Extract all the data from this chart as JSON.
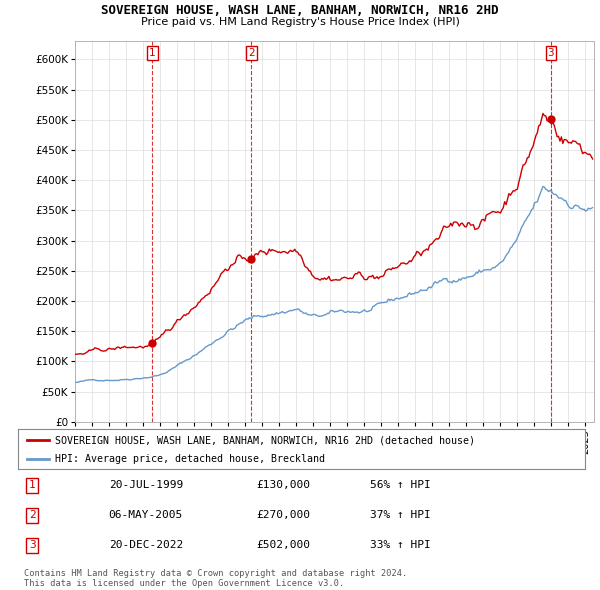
{
  "title": "SOVEREIGN HOUSE, WASH LANE, BANHAM, NORWICH, NR16 2HD",
  "subtitle": "Price paid vs. HM Land Registry's House Price Index (HPI)",
  "xlim_start": 1995.0,
  "xlim_end": 2025.5,
  "ylim": [
    0,
    630000
  ],
  "yticks": [
    0,
    50000,
    100000,
    150000,
    200000,
    250000,
    300000,
    350000,
    400000,
    450000,
    500000,
    550000,
    600000
  ],
  "ytick_labels": [
    "£0",
    "£50K",
    "£100K",
    "£150K",
    "£200K",
    "£250K",
    "£300K",
    "£350K",
    "£400K",
    "£450K",
    "£500K",
    "£550K",
    "£600K"
  ],
  "red_color": "#cc0000",
  "blue_color": "#6699cc",
  "purchases": [
    {
      "num": 1,
      "year": 1999.55,
      "price": 130000,
      "date": "20-JUL-1999",
      "pct": "56%",
      "dir": "↑"
    },
    {
      "num": 2,
      "year": 2005.35,
      "price": 270000,
      "date": "06-MAY-2005",
      "pct": "37%",
      "dir": "↑"
    },
    {
      "num": 3,
      "year": 2022.97,
      "price": 502000,
      "date": "20-DEC-2022",
      "pct": "33%",
      "dir": "↑"
    }
  ],
  "legend_red_label": "SOVEREIGN HOUSE, WASH LANE, BANHAM, NORWICH, NR16 2HD (detached house)",
  "legend_blue_label": "HPI: Average price, detached house, Breckland",
  "footnote1": "Contains HM Land Registry data © Crown copyright and database right 2024.",
  "footnote2": "This data is licensed under the Open Government Licence v3.0.",
  "table_rows": [
    {
      "num": 1,
      "date": "20-JUL-1999",
      "price": "£130,000",
      "pct": "56% ↑ HPI"
    },
    {
      "num": 2,
      "date": "06-MAY-2005",
      "price": "£270,000",
      "pct": "37% ↑ HPI"
    },
    {
      "num": 3,
      "date": "20-DEC-2022",
      "price": "£502,000",
      "pct": "33% ↑ HPI"
    }
  ]
}
